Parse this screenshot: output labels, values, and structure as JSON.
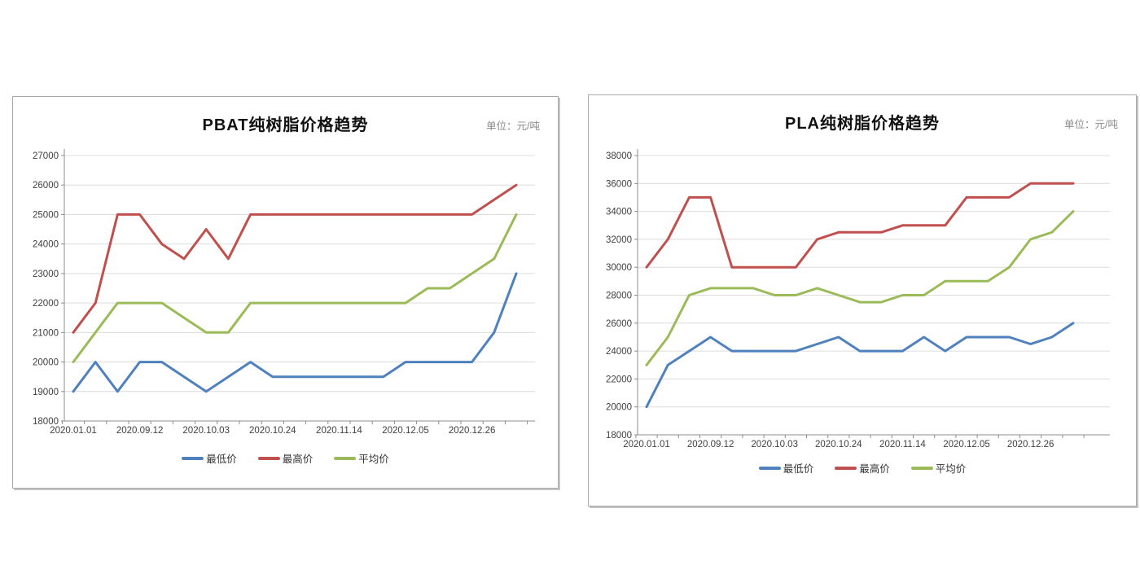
{
  "page": {
    "background": "#ffffff"
  },
  "chart_data": [
    {
      "type": "line",
      "title": "PBAT纯树脂价格趋势",
      "unit_label": "单位：元/吨",
      "xlabel": "",
      "ylabel": "",
      "ylim": [
        18000,
        27000
      ],
      "y_step": 1000,
      "n_points": 21,
      "grid": true,
      "legend_position": "bottom",
      "x_tick_labels": [
        "2020.01.01",
        "2020.09.12",
        "2020.10.03",
        "2020.10.24",
        "2020.11.14",
        "2020.12.05",
        "2020.12.26"
      ],
      "x_label_point_indices": [
        0,
        3,
        6,
        9,
        12,
        15,
        18
      ],
      "series": [
        {
          "name": "最低价",
          "role": "min-price",
          "color": "#4F81BD",
          "values": [
            19000,
            20000,
            19000,
            20000,
            20000,
            19500,
            19000,
            19500,
            20000,
            19500,
            19500,
            19500,
            19500,
            19500,
            19500,
            20000,
            20000,
            20000,
            20000,
            21000,
            23000
          ]
        },
        {
          "name": "最高价",
          "role": "max-price",
          "color": "#C0504D",
          "values": [
            21000,
            22000,
            25000,
            25000,
            24000,
            23500,
            24500,
            23500,
            25000,
            25000,
            25000,
            25000,
            25000,
            25000,
            25000,
            25000,
            25000,
            25000,
            25000,
            25500,
            26000
          ]
        },
        {
          "name": "平均价",
          "role": "avg-price",
          "color": "#9BBB59",
          "values": [
            20000,
            21000,
            22000,
            22000,
            22000,
            21500,
            21000,
            21000,
            22000,
            22000,
            22000,
            22000,
            22000,
            22000,
            22000,
            22000,
            22500,
            22500,
            23000,
            23500,
            25000
          ]
        }
      ]
    },
    {
      "type": "line",
      "title": "PLA纯树脂价格趋势",
      "unit_label": "单位：元/吨",
      "xlabel": "",
      "ylabel": "",
      "ylim": [
        18000,
        38000
      ],
      "y_step": 2000,
      "n_points": 21,
      "grid": true,
      "legend_position": "bottom",
      "x_tick_labels": [
        "2020.01.01",
        "2020.09.12",
        "2020.10.03",
        "2020.10.24",
        "2020.11.14",
        "2020.12.05",
        "2020.12.26"
      ],
      "x_label_point_indices": [
        0,
        3,
        6,
        9,
        12,
        15,
        18
      ],
      "series": [
        {
          "name": "最低价",
          "role": "min-price",
          "color": "#4F81BD",
          "values": [
            20000,
            23000,
            24000,
            25000,
            24000,
            24000,
            24000,
            24000,
            24500,
            25000,
            24000,
            24000,
            24000,
            25000,
            24000,
            25000,
            25000,
            25000,
            24500,
            25000,
            26000
          ]
        },
        {
          "name": "最高价",
          "role": "max-price",
          "color": "#C0504D",
          "values": [
            30000,
            32000,
            35000,
            35000,
            30000,
            30000,
            30000,
            30000,
            32000,
            32500,
            32500,
            32500,
            33000,
            33000,
            33000,
            35000,
            35000,
            35000,
            36000,
            36000,
            36000
          ]
        },
        {
          "name": "平均价",
          "role": "avg-price",
          "color": "#9BBB59",
          "values": [
            23000,
            25000,
            28000,
            28500,
            28500,
            28500,
            28000,
            28000,
            28500,
            28000,
            27500,
            27500,
            28000,
            28000,
            29000,
            29000,
            29000,
            30000,
            32000,
            32500,
            34000
          ]
        }
      ]
    }
  ],
  "style": {
    "axis_color": "#8c8c8c",
    "gridline_color": "#dcdcdc",
    "tick_label_color": "#3f3f3f"
  }
}
